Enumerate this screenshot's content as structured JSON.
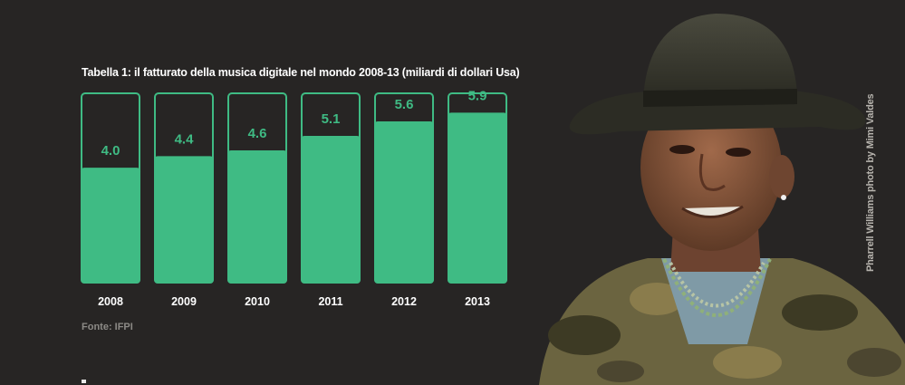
{
  "chart_data": {
    "type": "bar",
    "title": "Tabella 1: il fatturato della musica digitale nel mondo 2008-13 (miliardi di dollari Usa)",
    "categories": [
      "2008",
      "2009",
      "2010",
      "2011",
      "2012",
      "2013"
    ],
    "values": [
      4.0,
      4.4,
      4.6,
      5.1,
      5.6,
      5.9
    ],
    "value_labels": [
      "4.0",
      "4.4",
      "4.6",
      "5.1",
      "5.6",
      "5.9"
    ],
    "xlabel": "",
    "ylabel": "",
    "ylim": [
      0,
      6.6
    ],
    "grid": false,
    "legend": "none",
    "colors": {
      "bar": "#3fbb84",
      "outline": "#3fbb84",
      "background": "#272524",
      "text": "#ffffff"
    }
  },
  "source": "Fonte: IFPI",
  "photo": {
    "credit": "Pharrell Williams photo by Mimi Valdes"
  }
}
